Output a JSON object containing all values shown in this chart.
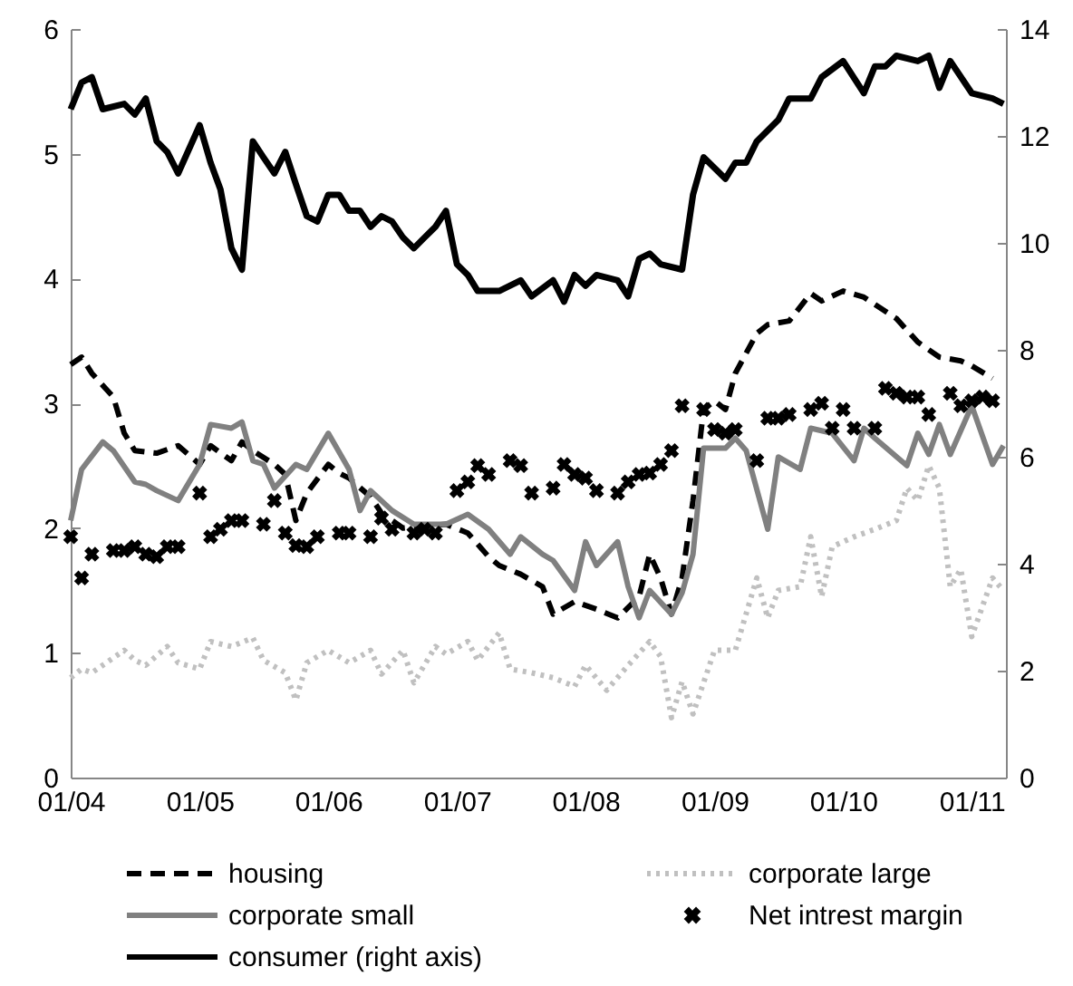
{
  "chart_data": {
    "type": "line",
    "xlim": [
      "2004-01-01",
      "2011-04-08"
    ],
    "xticks": [
      {
        "value": "2004-01",
        "label": "01/04"
      },
      {
        "value": "2005-01",
        "label": "01/05"
      },
      {
        "value": "2006-01",
        "label": "01/06"
      },
      {
        "value": "2007-01",
        "label": "01/07"
      },
      {
        "value": "2008-01",
        "label": "01/08"
      },
      {
        "value": "2009-01",
        "label": "01/09"
      },
      {
        "value": "2010-01",
        "label": "01/10"
      },
      {
        "value": "2011-01",
        "label": "01/11"
      }
    ],
    "ylim": [
      0,
      6
    ],
    "yticks": [
      0,
      1,
      2,
      3,
      4,
      5,
      6
    ],
    "y2lim": [
      0,
      14
    ],
    "y2ticks": [
      0,
      2,
      4,
      6,
      8,
      10,
      12,
      14
    ],
    "legend": "bottom",
    "series": [
      {
        "name": "housing",
        "color": "#000000",
        "line_style": "dashed",
        "x": [
          "2004-01",
          "2004-02",
          "2004-03",
          "2004-05",
          "2004-06",
          "2004-07",
          "2004-09",
          "2004-11",
          "2005-01",
          "2005-02",
          "2005-04",
          "2005-05",
          "2005-06",
          "2005-08",
          "2005-09",
          "2005-10",
          "2005-11",
          "2006-01",
          "2006-02",
          "2006-03",
          "2006-05",
          "2006-06",
          "2006-08",
          "2006-12",
          "2007-02",
          "2007-04",
          "2007-05",
          "2007-07",
          "2007-09",
          "2007-10",
          "2007-12",
          "2008-02",
          "2008-04",
          "2008-06",
          "2008-07",
          "2008-08",
          "2008-09",
          "2008-10",
          "2008-11",
          "2008-12",
          "2009-01",
          "2009-02",
          "2009-03",
          "2009-05",
          "2009-06",
          "2009-08",
          "2009-10",
          "2009-11",
          "2010-01",
          "2010-03",
          "2010-06",
          "2010-08",
          "2010-10",
          "2010-12",
          "2011-01",
          "2011-03"
        ],
        "values": [
          3.31,
          3.37,
          3.24,
          3.05,
          2.76,
          2.62,
          2.6,
          2.66,
          2.51,
          2.66,
          2.54,
          2.69,
          2.62,
          2.51,
          2.43,
          2.06,
          2.28,
          2.51,
          2.44,
          2.4,
          2.25,
          2.12,
          2.0,
          2.03,
          1.96,
          1.77,
          1.7,
          1.63,
          1.53,
          1.31,
          1.41,
          1.35,
          1.28,
          1.45,
          1.79,
          1.6,
          1.31,
          1.6,
          2.22,
          2.95,
          3.02,
          2.95,
          3.24,
          3.56,
          3.63,
          3.66,
          3.88,
          3.82,
          3.9,
          3.85,
          3.68,
          3.49,
          3.37,
          3.34,
          3.3,
          3.2
        ]
      },
      {
        "name": "corporate large",
        "color": "#c0c0c0",
        "line_style": "dotted",
        "x": [
          "2004-01",
          "2004-02",
          "2004-03",
          "2004-06",
          "2004-07",
          "2004-08",
          "2004-10",
          "2004-11",
          "2005-01",
          "2005-02",
          "2005-04",
          "2005-06",
          "2005-07",
          "2005-09",
          "2005-10",
          "2005-11",
          "2006-01",
          "2006-03",
          "2006-05",
          "2006-06",
          "2006-08",
          "2006-09",
          "2006-11",
          "2006-12",
          "2007-02",
          "2007-03",
          "2007-05",
          "2007-06",
          "2007-08",
          "2007-10",
          "2007-12",
          "2008-01",
          "2008-03",
          "2008-05",
          "2008-07",
          "2008-08",
          "2008-09",
          "2008-10",
          "2008-11",
          "2009-01",
          "2009-03",
          "2009-05",
          "2009-06",
          "2009-07",
          "2009-09",
          "2009-10",
          "2009-11",
          "2009-12",
          "2010-02",
          "2010-04",
          "2010-06",
          "2010-07",
          "2010-08",
          "2010-09",
          "2010-10",
          "2010-11",
          "2010-12",
          "2011-01",
          "2011-03",
          "2011-04"
        ],
        "values": [
          0.8,
          0.87,
          0.84,
          1.02,
          0.94,
          0.9,
          1.05,
          0.92,
          0.87,
          1.09,
          1.05,
          1.12,
          0.94,
          0.84,
          0.62,
          0.92,
          1.02,
          0.92,
          1.02,
          0.83,
          1.02,
          0.76,
          1.05,
          0.99,
          1.09,
          0.94,
          1.16,
          0.87,
          0.84,
          0.8,
          0.73,
          0.9,
          0.7,
          0.9,
          1.09,
          0.97,
          0.48,
          0.77,
          0.51,
          1.02,
          1.02,
          1.6,
          1.28,
          1.5,
          1.53,
          1.93,
          1.45,
          1.85,
          1.93,
          1.99,
          2.06,
          2.32,
          2.22,
          2.5,
          2.32,
          1.53,
          1.67,
          1.13,
          1.6,
          1.5
        ]
      },
      {
        "name": "corporate small",
        "color": "#808080",
        "line_style": "solid",
        "x": [
          "2004-01",
          "2004-02",
          "2004-04",
          "2004-05",
          "2004-07",
          "2004-08",
          "2004-09",
          "2004-11",
          "2005-01",
          "2005-02",
          "2005-04",
          "2005-05",
          "2005-06",
          "2005-07",
          "2005-08",
          "2005-10",
          "2005-11",
          "2006-01",
          "2006-03",
          "2006-04",
          "2006-05",
          "2006-07",
          "2006-09",
          "2006-12",
          "2007-02",
          "2007-04",
          "2007-06",
          "2007-07",
          "2007-09",
          "2007-10",
          "2007-12",
          "2008-01",
          "2008-02",
          "2008-04",
          "2008-05",
          "2008-06",
          "2008-07",
          "2008-09",
          "2008-10",
          "2008-11",
          "2008-12",
          "2009-02",
          "2009-03",
          "2009-04",
          "2009-06",
          "2009-07",
          "2009-09",
          "2009-10",
          "2009-12",
          "2010-02",
          "2010-03",
          "2010-04",
          "2010-07",
          "2010-08",
          "2010-09",
          "2010-10",
          "2010-11",
          "2011-01",
          "2011-03",
          "2011-04"
        ],
        "values": [
          2.06,
          2.47,
          2.69,
          2.62,
          2.37,
          2.35,
          2.3,
          2.22,
          2.51,
          2.83,
          2.8,
          2.85,
          2.54,
          2.51,
          2.32,
          2.51,
          2.47,
          2.76,
          2.47,
          2.14,
          2.3,
          2.14,
          2.03,
          2.03,
          2.11,
          1.99,
          1.79,
          1.93,
          1.79,
          1.74,
          1.5,
          1.89,
          1.7,
          1.89,
          1.53,
          1.28,
          1.5,
          1.31,
          1.48,
          1.79,
          2.64,
          2.64,
          2.72,
          2.62,
          1.99,
          2.57,
          2.47,
          2.8,
          2.76,
          2.54,
          2.8,
          2.72,
          2.5,
          2.76,
          2.59,
          2.83,
          2.59,
          2.98,
          2.51,
          2.66
        ]
      },
      {
        "name": "Net intrest margin",
        "color": "#000000",
        "type": "scatter",
        "marker": "cross",
        "x": [
          "2004-01",
          "2004-02",
          "2004-03",
          "2004-05",
          "2004-06",
          "2004-07",
          "2004-08",
          "2004-09",
          "2004-10",
          "2004-11",
          "2005-01",
          "2005-02",
          "2005-03",
          "2005-04",
          "2005-05",
          "2005-07",
          "2005-08",
          "2005-09",
          "2005-10",
          "2005-11",
          "2005-12",
          "2006-02",
          "2006-03",
          "2006-05",
          "2006-06",
          "2006-07",
          "2006-09",
          "2006-10",
          "2006-11",
          "2007-01",
          "2007-02",
          "2007-03",
          "2007-04",
          "2007-06",
          "2007-07",
          "2007-08",
          "2007-10",
          "2007-11",
          "2007-12",
          "2008-01",
          "2008-02",
          "2008-04",
          "2008-05",
          "2008-06",
          "2008-07",
          "2008-08",
          "2008-09",
          "2008-10",
          "2008-12",
          "2009-01",
          "2009-02",
          "2009-03",
          "2009-05",
          "2009-06",
          "2009-07",
          "2009-08",
          "2009-10",
          "2009-11",
          "2009-12",
          "2010-01",
          "2010-02",
          "2010-04",
          "2010-05",
          "2010-06",
          "2010-07",
          "2010-08",
          "2010-09",
          "2010-11",
          "2010-12",
          "2011-01",
          "2011-02",
          "2011-03"
        ],
        "values": [
          1.93,
          1.6,
          1.79,
          1.82,
          1.82,
          1.85,
          1.79,
          1.77,
          1.85,
          1.85,
          2.28,
          1.93,
          1.99,
          2.06,
          2.06,
          2.03,
          2.22,
          1.96,
          1.86,
          1.85,
          1.93,
          1.96,
          1.96,
          1.93,
          2.08,
          1.99,
          1.96,
          1.99,
          1.96,
          2.3,
          2.37,
          2.5,
          2.43,
          2.54,
          2.5,
          2.28,
          2.32,
          2.51,
          2.43,
          2.4,
          2.3,
          2.28,
          2.37,
          2.43,
          2.44,
          2.51,
          2.62,
          2.98,
          2.95,
          2.79,
          2.76,
          2.79,
          2.54,
          2.88,
          2.88,
          2.91,
          2.95,
          3.0,
          2.8,
          2.95,
          2.8,
          2.8,
          3.12,
          3.08,
          3.05,
          3.05,
          2.91,
          3.08,
          2.98,
          3.02,
          3.05,
          3.02
        ]
      },
      {
        "name": "consumer (right axis)",
        "color": "#000000",
        "line_style": "solid",
        "axis": "y2",
        "x": [
          "2004-01",
          "2004-02",
          "2004-03",
          "2004-04",
          "2004-06",
          "2004-07",
          "2004-08",
          "2004-09",
          "2004-10",
          "2004-11",
          "2005-01",
          "2005-02",
          "2005-03",
          "2005-04",
          "2005-05",
          "2005-06",
          "2005-07",
          "2005-08",
          "2005-09",
          "2005-10",
          "2005-11",
          "2005-12",
          "2006-01",
          "2006-02",
          "2006-03",
          "2006-04",
          "2006-05",
          "2006-06",
          "2006-07",
          "2006-08",
          "2006-09",
          "2006-10",
          "2006-11",
          "2006-12",
          "2007-01",
          "2007-02",
          "2007-03",
          "2007-05",
          "2007-07",
          "2007-08",
          "2007-10",
          "2007-11",
          "2007-12",
          "2008-01",
          "2008-02",
          "2008-04",
          "2008-05",
          "2008-06",
          "2008-07",
          "2008-08",
          "2008-10",
          "2008-11",
          "2008-12",
          "2009-02",
          "2009-03",
          "2009-04",
          "2009-05",
          "2009-07",
          "2009-08",
          "2009-10",
          "2009-11",
          "2010-01",
          "2010-03",
          "2010-04",
          "2010-05",
          "2010-06",
          "2010-08",
          "2010-09",
          "2010-10",
          "2010-11",
          "2011-01",
          "2011-03",
          "2011-04"
        ],
        "values": [
          12.5,
          13.0,
          13.1,
          12.5,
          12.6,
          12.4,
          12.7,
          11.9,
          11.7,
          11.3,
          12.2,
          11.5,
          11.0,
          9.9,
          9.5,
          11.9,
          11.6,
          11.3,
          11.7,
          11.1,
          10.5,
          10.4,
          10.9,
          10.9,
          10.6,
          10.6,
          10.3,
          10.5,
          10.4,
          10.1,
          9.9,
          10.1,
          10.3,
          10.6,
          9.6,
          9.4,
          9.1,
          9.1,
          9.3,
          9.0,
          9.3,
          8.9,
          9.4,
          9.2,
          9.4,
          9.3,
          9.0,
          9.7,
          9.8,
          9.6,
          9.5,
          10.9,
          11.6,
          11.2,
          11.5,
          11.5,
          11.9,
          12.3,
          12.7,
          12.7,
          13.1,
          13.4,
          12.8,
          13.3,
          13.3,
          13.5,
          13.4,
          13.5,
          12.9,
          13.4,
          12.8,
          12.7,
          12.6
        ]
      }
    ]
  }
}
